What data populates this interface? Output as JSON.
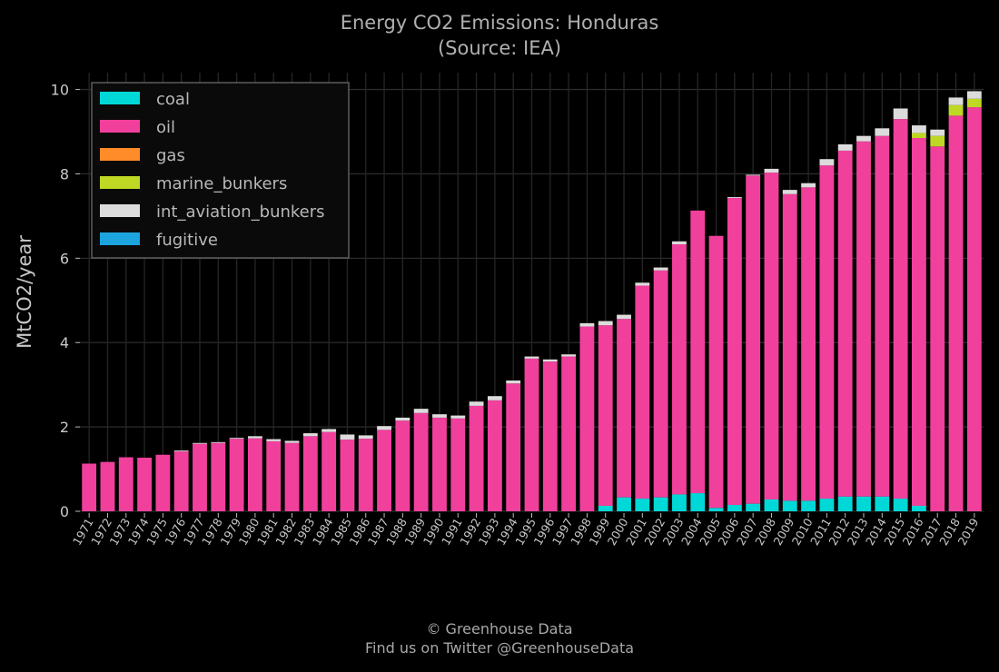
{
  "chart_data": {
    "type": "bar",
    "stacked": true,
    "title": "Energy CO2 Emissions: Honduras",
    "subtitle": "(Source: IEA)",
    "xlabel": "",
    "ylabel": "MtCO2/year",
    "ylim": [
      0,
      10.4
    ],
    "yticks": [
      0,
      2,
      4,
      6,
      8,
      10
    ],
    "grid": true,
    "legend_position": "top-left",
    "categories": [
      "1971",
      "1972",
      "1973",
      "1974",
      "1975",
      "1976",
      "1977",
      "1978",
      "1979",
      "1980",
      "1981",
      "1982",
      "1983",
      "1984",
      "1985",
      "1986",
      "1987",
      "1988",
      "1989",
      "1990",
      "1991",
      "1992",
      "1993",
      "1994",
      "1995",
      "1996",
      "1997",
      "1998",
      "1999",
      "2000",
      "2001",
      "2002",
      "2003",
      "2004",
      "2005",
      "2006",
      "2007",
      "2008",
      "2009",
      "2010",
      "2011",
      "2012",
      "2013",
      "2014",
      "2015",
      "2016",
      "2017",
      "2018",
      "2019"
    ],
    "series": [
      {
        "name": "coal",
        "color": "#00d8d8",
        "values": [
          0,
          0,
          0,
          0,
          0,
          0,
          0,
          0,
          0,
          0,
          0,
          0,
          0,
          0,
          0,
          0,
          0,
          0,
          0,
          0,
          0,
          0,
          0,
          0,
          0,
          0,
          0,
          0,
          0.13,
          0.33,
          0.3,
          0.33,
          0.4,
          0.43,
          0.08,
          0.15,
          0.18,
          0.28,
          0.25,
          0.25,
          0.3,
          0.35,
          0.35,
          0.35,
          0.3,
          0.13,
          0,
          0,
          0
        ]
      },
      {
        "name": "oil",
        "color": "#f0409c",
        "values": [
          1.13,
          1.17,
          1.28,
          1.27,
          1.34,
          1.42,
          1.6,
          1.62,
          1.72,
          1.73,
          1.66,
          1.62,
          1.78,
          1.88,
          1.7,
          1.72,
          1.93,
          2.15,
          2.33,
          2.22,
          2.2,
          2.5,
          2.63,
          3.03,
          3.62,
          3.55,
          3.67,
          4.38,
          4.28,
          4.23,
          5.05,
          5.38,
          5.93,
          6.7,
          6.45,
          7.28,
          7.78,
          7.75,
          7.27,
          7.43,
          7.9,
          8.2,
          8.42,
          8.55,
          9.0,
          8.72,
          8.65,
          9.38,
          9.58
        ]
      },
      {
        "name": "gas",
        "color": "#ff8c28",
        "values": [
          0,
          0,
          0,
          0,
          0,
          0,
          0,
          0,
          0,
          0,
          0,
          0,
          0,
          0,
          0,
          0,
          0,
          0,
          0,
          0,
          0,
          0,
          0,
          0,
          0,
          0,
          0,
          0,
          0,
          0,
          0,
          0,
          0,
          0,
          0,
          0,
          0,
          0,
          0,
          0,
          0,
          0,
          0,
          0,
          0,
          0,
          0,
          0,
          0
        ]
      },
      {
        "name": "marine_bunkers",
        "color": "#bfd823",
        "values": [
          0,
          0,
          0,
          0,
          0,
          0,
          0,
          0,
          0,
          0,
          0,
          0,
          0,
          0,
          0,
          0,
          0,
          0,
          0,
          0,
          0,
          0,
          0,
          0,
          0,
          0,
          0,
          0,
          0,
          0,
          0,
          0,
          0,
          0,
          0,
          0,
          0,
          0,
          0,
          0,
          0,
          0,
          0,
          0,
          0,
          0.12,
          0.25,
          0.25,
          0.2
        ]
      },
      {
        "name": "int_aviation_bunkers",
        "color": "#dcdcdc",
        "values": [
          0,
          0,
          0,
          0,
          0,
          0.02,
          0.02,
          0.02,
          0.02,
          0.05,
          0.05,
          0.05,
          0.07,
          0.07,
          0.12,
          0.08,
          0.09,
          0.07,
          0.1,
          0.08,
          0.07,
          0.1,
          0.1,
          0.07,
          0.05,
          0.05,
          0.05,
          0.08,
          0.1,
          0.1,
          0.07,
          0.07,
          0.07,
          0,
          0,
          0.02,
          0.02,
          0.09,
          0.1,
          0.1,
          0.15,
          0.15,
          0.13,
          0.18,
          0.25,
          0.18,
          0.15,
          0.18,
          0.18
        ]
      },
      {
        "name": "fugitive",
        "color": "#1ba4de",
        "values": [
          0,
          0,
          0,
          0,
          0,
          0,
          0,
          0,
          0,
          0,
          0,
          0,
          0,
          0,
          0,
          0,
          0,
          0,
          0,
          0,
          0,
          0,
          0,
          0,
          0,
          0,
          0,
          0,
          0,
          0,
          0,
          0,
          0,
          0,
          0,
          0,
          0,
          0,
          0,
          0,
          0,
          0,
          0,
          0,
          0,
          0,
          0,
          0,
          0
        ]
      }
    ]
  },
  "footer": {
    "line1": "© Greenhouse Data",
    "line2": "Find us on Twitter @GreenhouseData"
  }
}
